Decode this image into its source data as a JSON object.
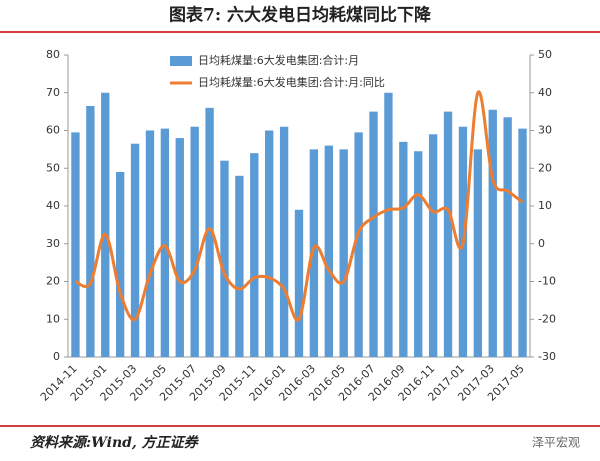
{
  "chart_data": {
    "type": "bar_line",
    "title": "图表7:  六大发电日均耗煤同比下降",
    "source": "资料来源:Wind, 方正证券",
    "watermark": "泽平宏观",
    "categories": [
      "2014-11",
      null,
      "2015-01",
      null,
      "2015-03",
      null,
      "2015-05",
      null,
      "2015-07",
      null,
      "2015-09",
      null,
      "2015-11",
      null,
      "2016-01",
      null,
      "2016-03",
      null,
      "2016-05",
      null,
      "2016-07",
      null,
      "2016-09",
      null,
      "2016-11",
      null,
      "2017-01",
      null,
      "2017-03",
      null,
      "2017-05"
    ],
    "series": [
      {
        "name": "日均耗煤量:6大发电集团:合计:月",
        "color": "#5b9bd5",
        "type": "bar",
        "axis": "y",
        "values": [
          59.5,
          66.5,
          70,
          49,
          56.5,
          60,
          60.5,
          58,
          61,
          66,
          52,
          48,
          54,
          60,
          61,
          39,
          55,
          56,
          55,
          59.5,
          65,
          70,
          57,
          54.5,
          59,
          65,
          61,
          55,
          65.5,
          63.5,
          60.5
        ]
      },
      {
        "name": "日均耗煤量:6大发电集团:合计:月:同比",
        "color": "#ed7d31",
        "type": "line",
        "axis": "y2",
        "values": [
          -10,
          -10.5,
          2.5,
          -13,
          -20,
          -8,
          -0.5,
          -10,
          -7,
          4,
          -8,
          -12,
          -9,
          -9,
          -12,
          -20,
          -1,
          -7,
          -10,
          3,
          7,
          9,
          9.5,
          13,
          8.5,
          9,
          0,
          40,
          17,
          14,
          11
        ]
      }
    ],
    "ylim": [
      0,
      80
    ],
    "yticks": [
      0,
      10,
      20,
      30,
      40,
      50,
      60,
      70,
      80
    ],
    "y2lim": [
      -30,
      50
    ],
    "y2ticks": [
      -30,
      -20,
      -10,
      0,
      10,
      20,
      30,
      40,
      50
    ]
  }
}
